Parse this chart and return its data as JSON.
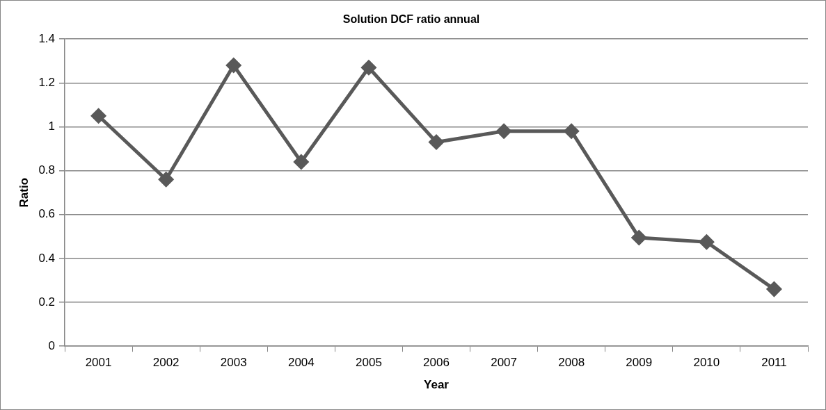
{
  "chart_data": {
    "type": "line",
    "title": "Solution DCF ratio annual",
    "xlabel": "Year",
    "ylabel": "Ratio",
    "categories": [
      "2001",
      "2002",
      "2003",
      "2004",
      "2005",
      "2006",
      "2007",
      "2008",
      "2009",
      "2010",
      "2011"
    ],
    "series": [
      {
        "color": "#595959",
        "values": [
          1.05,
          0.76,
          1.28,
          0.84,
          1.27,
          0.93,
          0.98,
          0.98,
          0.495,
          0.475,
          0.26
        ]
      }
    ],
    "ylim": [
      0,
      1.4
    ],
    "yticks": [
      0,
      0.2,
      0.4,
      0.6,
      0.8,
      1,
      1.2,
      1.4
    ],
    "grid": "y",
    "legend": false,
    "marker": "diamond",
    "line_style": "solid"
  }
}
